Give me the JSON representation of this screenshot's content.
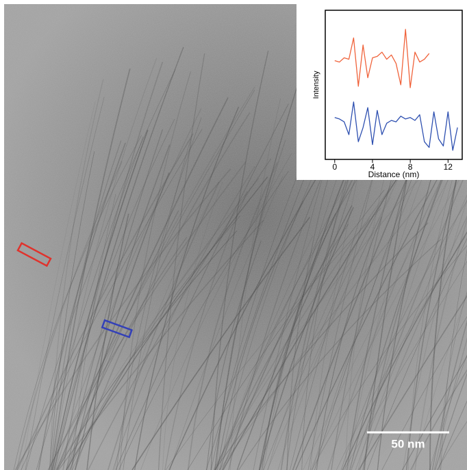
{
  "chart_data": {
    "type": "line",
    "xlabel": "Distance (nm)",
    "ylabel": "Intensity",
    "xlim": [
      -1,
      13.5
    ],
    "xticks": [
      0,
      4,
      8,
      12
    ],
    "ylim": [
      0,
      10
    ],
    "series": [
      {
        "color": "#f0623a",
        "x": [
          0,
          0.5,
          1,
          1.5,
          2,
          2.5,
          3,
          3.5,
          4,
          4.5,
          5,
          5.5,
          6,
          6.5,
          7,
          7.5,
          8,
          8.5,
          9,
          9.5,
          10
        ],
        "values": [
          6.7,
          6.6,
          6.9,
          6.8,
          8.3,
          4.9,
          7.8,
          5.5,
          6.9,
          7.0,
          7.3,
          6.8,
          7.1,
          6.5,
          5.0,
          8.9,
          4.8,
          7.3,
          6.6,
          6.8,
          7.2
        ]
      },
      {
        "color": "#2d4fb0",
        "x": [
          0,
          0.5,
          1,
          1.5,
          2,
          2.5,
          3,
          3.5,
          4,
          4.5,
          5,
          5.5,
          6,
          6.5,
          7,
          7.5,
          8,
          8.5,
          9,
          9.5,
          10,
          10.5,
          11,
          11.5,
          12,
          12.5,
          13
        ],
        "values": [
          2.7,
          2.6,
          2.4,
          1.5,
          3.8,
          1.0,
          2.0,
          3.4,
          0.8,
          3.2,
          1.5,
          2.3,
          2.5,
          2.4,
          2.8,
          2.6,
          2.7,
          2.5,
          2.9,
          1.0,
          0.6,
          3.1,
          1.2,
          0.7,
          3.1,
          0.4,
          2.0
        ]
      }
    ]
  },
  "image": {
    "scale_bar_label": "50 nm"
  }
}
